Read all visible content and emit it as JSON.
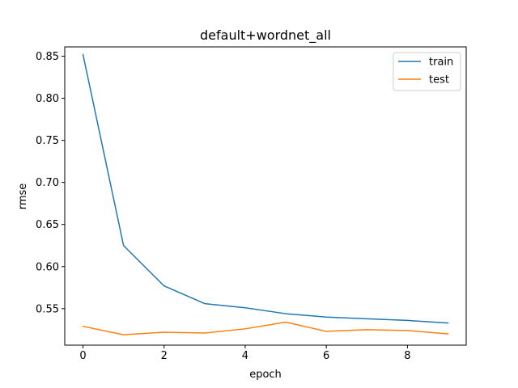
{
  "chart_data": {
    "type": "line",
    "title": "default+wordnet_all",
    "xlabel": "epoch",
    "ylabel": "rmse",
    "xlim": [
      -0.45,
      9.45
    ],
    "ylim": [
      0.5066,
      0.8611
    ],
    "xticks": [
      0,
      2,
      4,
      6,
      8
    ],
    "xtick_labels": [
      "0",
      "2",
      "4",
      "6",
      "8"
    ],
    "yticks": [
      0.55,
      0.6,
      0.65,
      0.7,
      0.75,
      0.8,
      0.85
    ],
    "ytick_labels": [
      "0.55",
      "0.60",
      "0.65",
      "0.70",
      "0.75",
      "0.80",
      "0.85"
    ],
    "grid": false,
    "legend_position": "top-right",
    "x": [
      0,
      1,
      2,
      3,
      4,
      5,
      6,
      7,
      8,
      9
    ],
    "series": [
      {
        "name": "train",
        "color": "#1f77b4",
        "values": [
          0.852,
          0.625,
          0.577,
          0.556,
          0.551,
          0.544,
          0.54,
          0.538,
          0.536,
          0.533
        ]
      },
      {
        "name": "test",
        "color": "#ff7f0e",
        "values": [
          0.529,
          0.519,
          0.522,
          0.521,
          0.526,
          0.534,
          0.523,
          0.525,
          0.524,
          0.52
        ]
      }
    ]
  }
}
